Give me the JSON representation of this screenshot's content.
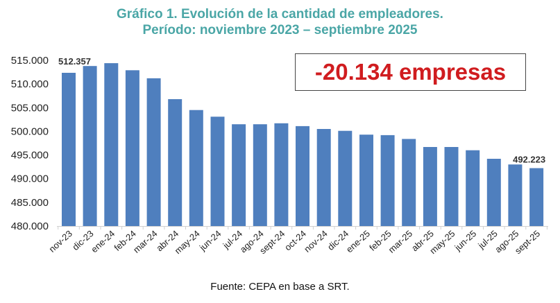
{
  "chart_data": {
    "type": "bar",
    "title": "Gráfico 1. Evolución de la cantidad de empleadores.",
    "subtitle": "Período: noviembre 2023 – septiembre 2025",
    "xlabel": "",
    "ylabel": "",
    "ylim": [
      480000,
      515000
    ],
    "yticks": [
      480000,
      485000,
      490000,
      495000,
      500000,
      505000,
      510000,
      515000
    ],
    "ytick_labels": [
      "480.000",
      "485.000",
      "490.000",
      "495.000",
      "500.000",
      "505.000",
      "510.000",
      "515.000"
    ],
    "grid": false,
    "categories": [
      "nov-23",
      "dic-23",
      "ene-24",
      "feb-24",
      "mar-24",
      "abr-24",
      "may-24",
      "jun-24",
      "jul-24",
      "ago-24",
      "sept-24",
      "oct-24",
      "nov-24",
      "dic-24",
      "ene-25",
      "feb-25",
      "mar-25",
      "abr-25",
      "may-25",
      "jun-25",
      "jul-25",
      "ago-25",
      "sept-25"
    ],
    "values": [
      512357,
      513800,
      514400,
      512900,
      511200,
      506800,
      504500,
      503100,
      501500,
      501500,
      501700,
      501100,
      500500,
      500100,
      499300,
      499200,
      498400,
      496700,
      496700,
      496000,
      494200,
      493000,
      492223
    ],
    "series_color": "#4f7fbe",
    "data_labels": [
      {
        "category": "nov-23",
        "text": "512.357"
      },
      {
        "category": "sept-25",
        "text": "492.223"
      }
    ],
    "annotation": {
      "text": "-20.134 empresas",
      "color": "#d01c1f"
    },
    "source": "Fuente: CEPA en base a SRT."
  }
}
